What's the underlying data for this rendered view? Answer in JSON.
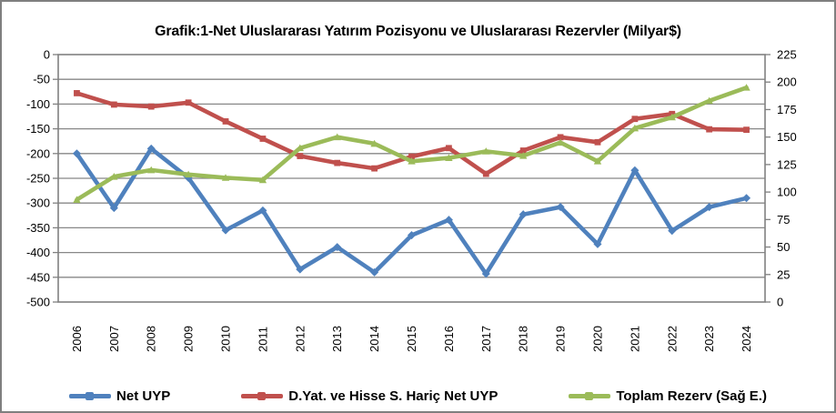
{
  "chart_data": {
    "type": "line",
    "title": "Grafik:1-Net Uluslararası Yatırım Pozisyonu ve Uluslararası Rezervler (Milyar$)",
    "categories": [
      "2006",
      "2007",
      "2008",
      "2009",
      "2010",
      "2011",
      "2012",
      "2013",
      "2014",
      "2015",
      "2016",
      "2017",
      "2018",
      "2019",
      "2020",
      "2021",
      "2022",
      "2023",
      "2024"
    ],
    "series": [
      {
        "name": "Net UYP",
        "axis": "left",
        "color": "#4F81BD",
        "marker": "diamond",
        "values": [
          -200,
          -310,
          -190,
          -249,
          -355,
          -315,
          -434,
          -389,
          -440,
          -365,
          -334,
          -443,
          -323,
          -308,
          -383,
          -234,
          -356,
          -308,
          -290
        ]
      },
      {
        "name": "D.Yat. ve Hisse S. Hariç Net UYP",
        "axis": "left",
        "color": "#C0504D",
        "marker": "square",
        "values": [
          -78,
          -101,
          -105,
          -97,
          -135,
          -170,
          -205,
          -219,
          -230,
          -206,
          -189,
          -241,
          -194,
          -167,
          -177,
          -130,
          -120,
          -151,
          -152
        ]
      },
      {
        "name": "Toplam Rezerv (Sağ E.)",
        "axis": "right",
        "color": "#9BBB59",
        "marker": "triangle",
        "values": [
          93,
          114,
          120,
          116,
          113,
          111,
          140,
          150,
          144,
          128,
          131,
          137,
          133,
          145,
          128,
          158,
          168,
          183,
          195
        ]
      }
    ],
    "left_axis": {
      "min": -500,
      "max": 0,
      "tick_labels": [
        "0",
        "-50",
        "-100",
        "-150",
        "-200",
        "-250",
        "-300",
        "-350",
        "-400",
        "-450",
        "-500"
      ]
    },
    "right_axis": {
      "min": 0,
      "max": 225,
      "tick_labels": [
        "225",
        "200",
        "175",
        "150",
        "125",
        "100",
        "75",
        "50",
        "25",
        "0"
      ]
    },
    "grid": "horizontal",
    "legend_position": "bottom",
    "colors": {
      "gridline": "#878787",
      "plot_border": "#808080",
      "axis_text": "#000000",
      "background": "#FFFFFF"
    }
  }
}
